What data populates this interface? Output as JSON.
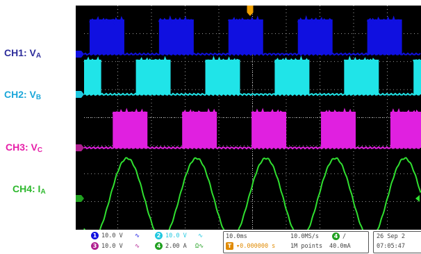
{
  "labels": [
    {
      "id": "ch1",
      "text": "CH1: V",
      "sub": "A",
      "color": "#2d2d9b"
    },
    {
      "id": "ch2",
      "text": "CH2: V",
      "sub": "B",
      "color": "#1aa6d9"
    },
    {
      "id": "ch3",
      "text": "CH3: V",
      "sub": "C",
      "color": "#e61ea8"
    },
    {
      "id": "ch4",
      "text": "CH4: I",
      "sub": "A",
      "color": "#2db82d"
    }
  ],
  "colors": {
    "ch1": "#1010e0",
    "ch2": "#20e4e8",
    "ch3": "#e020e0",
    "ch4": "#30e030",
    "trigger": "#f0a000",
    "grid": "#ffffff"
  },
  "status": {
    "ch1_num": "1",
    "ch1_scale": "10.0 V",
    "ch2_num": "2",
    "ch2_scale": "10.0 V",
    "ch3_num": "3",
    "ch3_scale": "10.0 V",
    "ch4_num": "4",
    "ch4_scale": "2.00 A",
    "bw_limit": "Ω",
    "timebase": "10.0ms",
    "trigger_pos": "▾0.000000 s",
    "trigger_pos_prefix": "T→",
    "sample_rate": "10.0MS/s",
    "record_length": "1M points",
    "trig_source": "4",
    "trig_slope": "/",
    "trig_level": "40.0mA",
    "date": "26 Sep 2",
    "time": "07:05:47"
  },
  "icons": [
    "coupling-dc-icon",
    "trigger-marker-icon",
    "channel-marker-icon"
  ],
  "waveforms": {
    "period_ms": 20,
    "frequency_hz": 50,
    "phase_shift_deg": 120,
    "horizontal_divisions": 10,
    "vertical_divisions": 8
  }
}
